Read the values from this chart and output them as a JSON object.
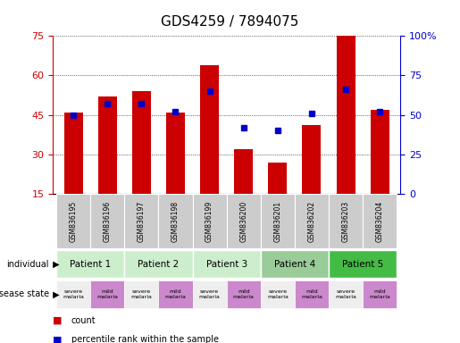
{
  "title": "GDS4259 / 7894075",
  "samples": [
    "GSM836195",
    "GSM836196",
    "GSM836197",
    "GSM836198",
    "GSM836199",
    "GSM836200",
    "GSM836201",
    "GSM836202",
    "GSM836203",
    "GSM836204"
  ],
  "counts": [
    46,
    52,
    54,
    46,
    64,
    32,
    27,
    41,
    75,
    47
  ],
  "percentiles": [
    50,
    57,
    57,
    52,
    65,
    42,
    40,
    51,
    66,
    52
  ],
  "ylim_left": [
    15,
    75
  ],
  "ylim_right": [
    0,
    100
  ],
  "yticks_left": [
    15,
    30,
    45,
    60,
    75
  ],
  "yticks_right": [
    0,
    25,
    50,
    75,
    100
  ],
  "ytick_labels_right": [
    "0",
    "25",
    "50",
    "75",
    "100%"
  ],
  "bar_color": "#cc0000",
  "dot_color": "#0000cc",
  "grid_color": "#000000",
  "patients": [
    {
      "label": "Patient 1",
      "start": 0,
      "end": 2,
      "color": "#cceecc"
    },
    {
      "label": "Patient 2",
      "start": 2,
      "end": 4,
      "color": "#cceecc"
    },
    {
      "label": "Patient 3",
      "start": 4,
      "end": 6,
      "color": "#cceecc"
    },
    {
      "label": "Patient 4",
      "start": 6,
      "end": 8,
      "color": "#99cc99"
    },
    {
      "label": "Patient 5",
      "start": 8,
      "end": 10,
      "color": "#44bb44"
    }
  ],
  "disease_states": [
    {
      "label": "severe\nmalaria",
      "col": 0,
      "color": "#eeeeee"
    },
    {
      "label": "mild\nmalaria",
      "col": 1,
      "color": "#cc88cc"
    },
    {
      "label": "severe\nmalaria",
      "col": 2,
      "color": "#eeeeee"
    },
    {
      "label": "mild\nmalaria",
      "col": 3,
      "color": "#cc88cc"
    },
    {
      "label": "severe\nmalaria",
      "col": 4,
      "color": "#eeeeee"
    },
    {
      "label": "mild\nmalaria",
      "col": 5,
      "color": "#cc88cc"
    },
    {
      "label": "severe\nmalaria",
      "col": 6,
      "color": "#eeeeee"
    },
    {
      "label": "mild\nmalaria",
      "col": 7,
      "color": "#cc88cc"
    },
    {
      "label": "severe\nmalaria",
      "col": 8,
      "color": "#eeeeee"
    },
    {
      "label": "mild\nmalaria",
      "col": 9,
      "color": "#cc88cc"
    }
  ],
  "individual_label": "individual",
  "disease_label": "disease state",
  "legend_count": "count",
  "legend_percentile": "percentile rank within the sample",
  "bg_color": "#ffffff",
  "sample_label_bg": "#cccccc"
}
